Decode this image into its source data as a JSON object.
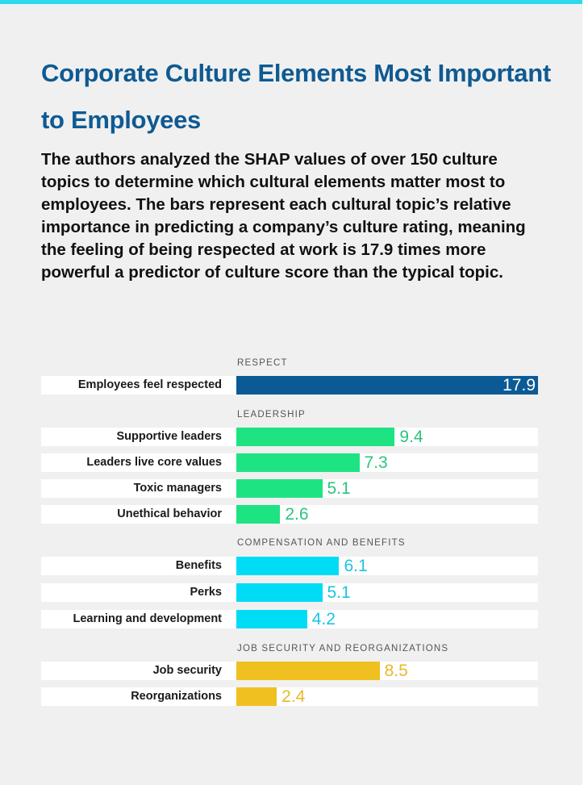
{
  "chart_data": {
    "type": "bar",
    "orientation": "horizontal",
    "title": "Corporate Culture Elements Most Important to Employees",
    "subtitle": "The authors analyzed the SHAP values of over 150 culture topics to determine which cultural elements matter most to employees. The bars represent each cultural topic’s relative importance in predicting a company’s culture rating, meaning the feeling of being respected at work is 17.9 times more powerful a predictor of culture score than the typical topic.",
    "xlim": [
      0,
      17.9
    ],
    "grid": false,
    "groups": [
      {
        "name": "RESPECT",
        "color": "#0b5a96",
        "value_color": "#ffffff",
        "items": [
          {
            "label": "Employees feel respected",
            "value": 17.9
          }
        ]
      },
      {
        "name": "LEADERSHIP",
        "color": "#1ee383",
        "value_color": "#2cc47d",
        "items": [
          {
            "label": "Supportive leaders",
            "value": 9.4
          },
          {
            "label": "Leaders live core values",
            "value": 7.3
          },
          {
            "label": "Toxic managers",
            "value": 5.1
          },
          {
            "label": "Unethical behavior",
            "value": 2.6
          }
        ]
      },
      {
        "name": "COMPENSATION AND BENEFITS",
        "color": "#00dcf6",
        "value_color": "#1cc3e3",
        "items": [
          {
            "label": "Benefits",
            "value": 6.1
          },
          {
            "label": "Perks",
            "value": 5.1
          },
          {
            "label": "Learning and development",
            "value": 4.2
          }
        ]
      },
      {
        "name": "JOB SECURITY AND REORGANIZATIONS",
        "color": "#f0c020",
        "value_color": "#e8b82a",
        "items": [
          {
            "label": "Job security",
            "value": 8.5
          },
          {
            "label": "Reorganizations",
            "value": 2.4
          }
        ]
      }
    ]
  }
}
